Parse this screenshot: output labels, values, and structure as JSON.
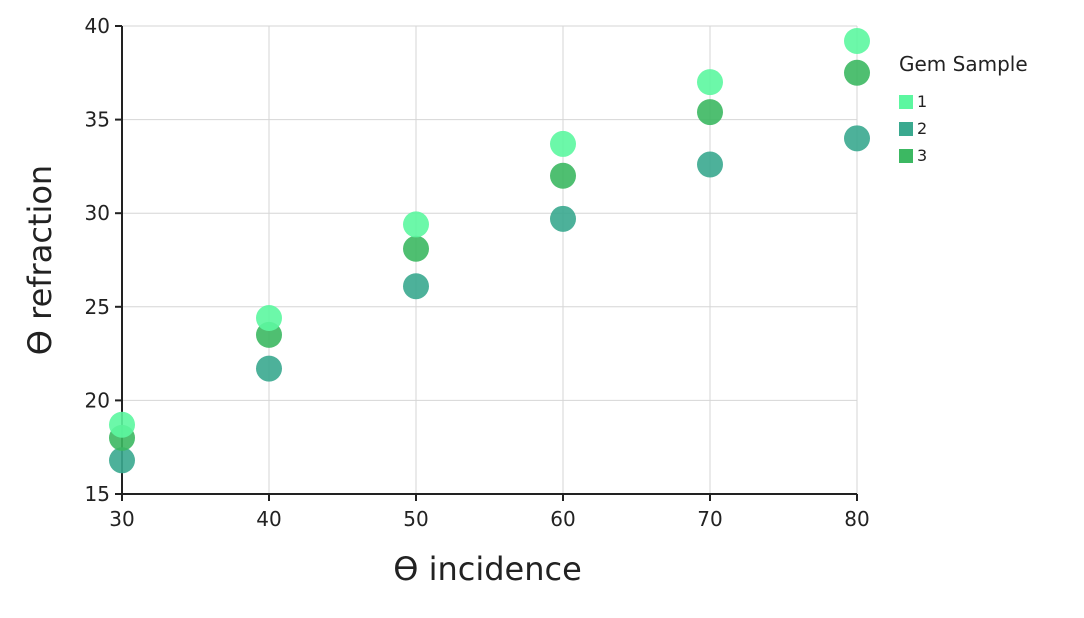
{
  "chart_data": {
    "type": "scatter",
    "title": "",
    "xlabel": "ϴ incidence",
    "ylabel": "ϴ refraction",
    "xlim": [
      30,
      80
    ],
    "ylim": [
      15,
      40
    ],
    "xticks": [
      30,
      40,
      50,
      60,
      70,
      80
    ],
    "yticks": [
      15,
      20,
      25,
      30,
      35,
      40
    ],
    "grid": true,
    "legend": {
      "title": "Gem Sample",
      "placement": "right"
    },
    "series": [
      {
        "name": "1",
        "color": "#5cf7a0",
        "x": [
          30,
          40,
          50,
          60,
          70,
          80
        ],
        "y": [
          18.7,
          24.4,
          29.4,
          33.7,
          37.0,
          39.2
        ]
      },
      {
        "name": "2",
        "color": "#3aa98f",
        "x": [
          30,
          40,
          50,
          60,
          70,
          80
        ],
        "y": [
          16.8,
          21.7,
          26.1,
          29.7,
          32.6,
          34.0
        ]
      },
      {
        "name": "3",
        "color": "#3cb862",
        "x": [
          30,
          40,
          50,
          60,
          70,
          80
        ],
        "y": [
          18.0,
          23.5,
          28.1,
          32.0,
          35.4,
          37.5
        ]
      }
    ]
  }
}
